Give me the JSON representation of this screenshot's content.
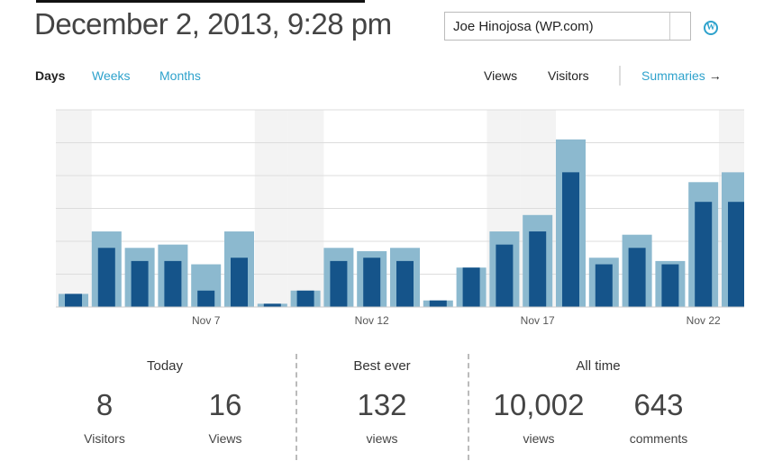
{
  "header": {
    "title": "December 2, 2013, 9:28 pm",
    "site_select": "Joe Hinojosa (WP.com)",
    "wp_icon": "wordpress-logo-icon"
  },
  "tabs": {
    "days": "Days",
    "weeks": "Weeks",
    "months": "Months",
    "views": "Views",
    "visitors": "Visitors",
    "summaries": "Summaries",
    "summaries_arrow": "→"
  },
  "colors": {
    "accent": "#2ea2cc",
    "views_bar": "#8cb9cf",
    "visitors_bar": "#15548a",
    "weekend": "#f3f3f3"
  },
  "chart_data": {
    "type": "bar",
    "categories": [
      "Nov 3",
      "Nov 4",
      "Nov 5",
      "Nov 6",
      "Nov 7",
      "Nov 8",
      "Nov 9",
      "Nov 10",
      "Nov 11",
      "Nov 12",
      "Nov 13",
      "Nov 14",
      "Nov 15",
      "Nov 16",
      "Nov 17",
      "Nov 18",
      "Nov 19",
      "Nov 20",
      "Nov 21",
      "Nov 22",
      "Nov 23"
    ],
    "tick_labels": [
      {
        "index": 4,
        "label": "Nov 7"
      },
      {
        "index": 9,
        "label": "Nov 12"
      },
      {
        "index": 14,
        "label": "Nov 17"
      },
      {
        "index": 19,
        "label": "Nov 22"
      }
    ],
    "weekend_indices": [
      0,
      6,
      7,
      13,
      14,
      20
    ],
    "series": [
      {
        "name": "Views",
        "values": [
          4,
          23,
          18,
          19,
          13,
          23,
          1,
          5,
          18,
          17,
          18,
          2,
          12,
          23,
          28,
          51,
          15,
          22,
          14,
          38,
          41
        ]
      },
      {
        "name": "Visitors",
        "values": [
          4,
          18,
          14,
          14,
          5,
          15,
          1,
          5,
          14,
          15,
          14,
          2,
          12,
          19,
          23,
          41,
          13,
          18,
          13,
          32,
          32
        ]
      }
    ],
    "ylim": [
      0,
      60
    ],
    "grid": true,
    "gridlines_every": 10,
    "xlabel": "",
    "ylabel": "",
    "title": ""
  },
  "stats": {
    "today": {
      "heading": "Today",
      "visitors_value": "8",
      "visitors_label": "Visitors",
      "views_value": "16",
      "views_label": "Views"
    },
    "best": {
      "heading": "Best ever",
      "value": "132",
      "label": "views"
    },
    "all_time": {
      "heading": "All time",
      "views_value": "10,002",
      "views_label": "views",
      "comments_value": "643",
      "comments_label": "comments"
    }
  }
}
